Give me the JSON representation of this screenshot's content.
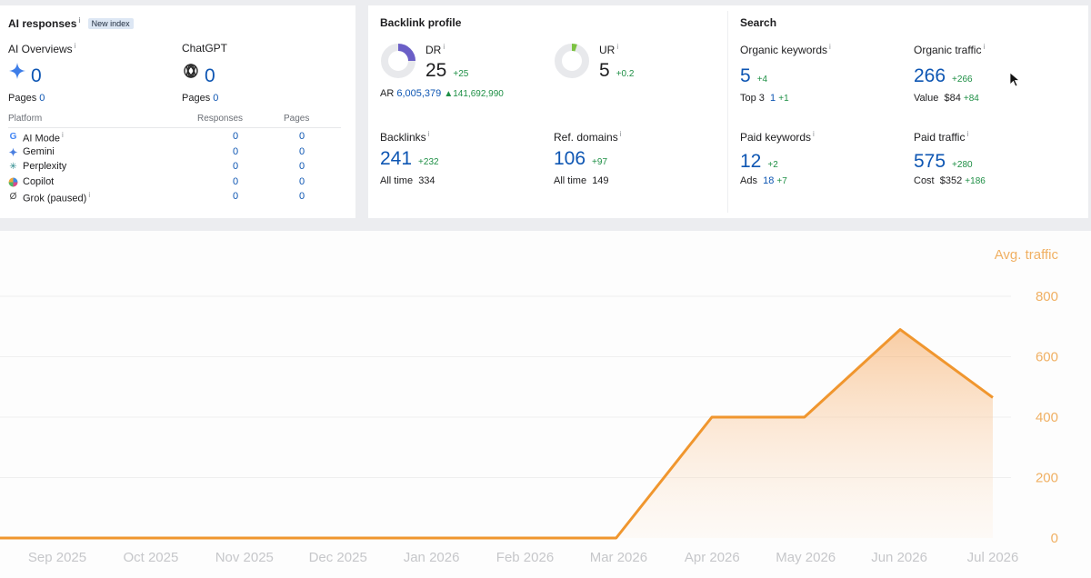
{
  "ai_responses": {
    "title": "AI responses",
    "badge": "New index",
    "overviews": {
      "label": "AI Overviews",
      "value": "0",
      "pages_label": "Pages",
      "pages_value": "0"
    },
    "chatgpt": {
      "label": "ChatGPT",
      "value": "0",
      "pages_label": "Pages",
      "pages_value": "0"
    },
    "table": {
      "headers": [
        "Platform",
        "Responses",
        "Pages"
      ],
      "rows": [
        {
          "name": "AI Mode",
          "icon": "google-icon",
          "responses": "0",
          "pages": "0",
          "info": true
        },
        {
          "name": "Gemini",
          "icon": "gemini-icon",
          "responses": "0",
          "pages": "0",
          "info": false
        },
        {
          "name": "Perplexity",
          "icon": "perplexity-icon",
          "responses": "0",
          "pages": "0",
          "info": false
        },
        {
          "name": "Copilot",
          "icon": "copilot-icon",
          "responses": "0",
          "pages": "0",
          "info": false
        },
        {
          "name": "Grok (paused)",
          "icon": "grok-icon",
          "responses": "0",
          "pages": "0",
          "info": true
        }
      ]
    }
  },
  "backlink_profile": {
    "title": "Backlink profile",
    "dr": {
      "label": "DR",
      "value": "25",
      "delta": "+25",
      "fill": 0.25
    },
    "ur": {
      "label": "UR",
      "value": "5",
      "delta": "+0.2",
      "fill": 0.05
    },
    "ar": {
      "label": "AR",
      "value": "6,005,379",
      "delta": "141,692,990"
    },
    "backlinks": {
      "label": "Backlinks",
      "value": "241",
      "delta": "+232",
      "sub_label": "All time",
      "sub_value": "334"
    },
    "ref_domains": {
      "label": "Ref. domains",
      "value": "106",
      "delta": "+97",
      "sub_label": "All time",
      "sub_value": "149"
    }
  },
  "search": {
    "title": "Search",
    "organic_keywords": {
      "label": "Organic keywords",
      "value": "5",
      "delta": "+4",
      "sub_label": "Top 3",
      "sub_value": "1",
      "sub_delta": "+1"
    },
    "organic_traffic": {
      "label": "Organic traffic",
      "value": "266",
      "delta": "+266",
      "sub_label": "Value",
      "sub_value": "$84",
      "sub_delta": "+84"
    },
    "paid_keywords": {
      "label": "Paid keywords",
      "value": "12",
      "delta": "+2",
      "sub_label": "Ads",
      "sub_value": "18",
      "sub_delta": "+7"
    },
    "paid_traffic": {
      "label": "Paid traffic",
      "value": "575",
      "delta": "+280",
      "sub_label": "Cost",
      "sub_value": "$352",
      "sub_delta": "+186"
    }
  },
  "colors": {
    "accent_orange": "#f0962e",
    "link_blue": "#0e56b3",
    "delta_green": "#1e8f45",
    "dr_purple": "#6b5fc7",
    "ur_green": "#7cc242"
  },
  "chart_data": {
    "type": "area",
    "series": [
      {
        "name": "Avg. traffic",
        "values": [
          0,
          0,
          0,
          0,
          0,
          0,
          0,
          400,
          400,
          690,
          465
        ]
      }
    ],
    "categories": [
      "Sep 2025",
      "Oct 2025",
      "Nov 2025",
      "Dec 2025",
      "Jan 2026",
      "Feb 2026",
      "Mar 2026",
      "Apr 2026",
      "May 2026",
      "Jun 2026",
      "Jul 2026"
    ],
    "x": [
      "2025-08-01",
      "2025-08-15",
      "2025-09-15",
      "2025-10-15",
      "2025-11-15",
      "2025-12-15",
      "2026-01-15",
      "2026-02-15",
      "2026-03-15",
      "2026-04-15",
      "2026-05-15",
      "2026-06-15",
      "2026-07-15"
    ],
    "y": [
      0,
      0,
      0,
      0,
      0,
      0,
      0,
      0,
      0,
      400,
      400,
      690,
      465
    ],
    "y_ticks": [
      "0",
      "200",
      "400",
      "600",
      "800"
    ],
    "ylim": [
      0,
      800
    ],
    "ylabel": "Avg. traffic",
    "y_axis_position": "right",
    "grid": true
  }
}
